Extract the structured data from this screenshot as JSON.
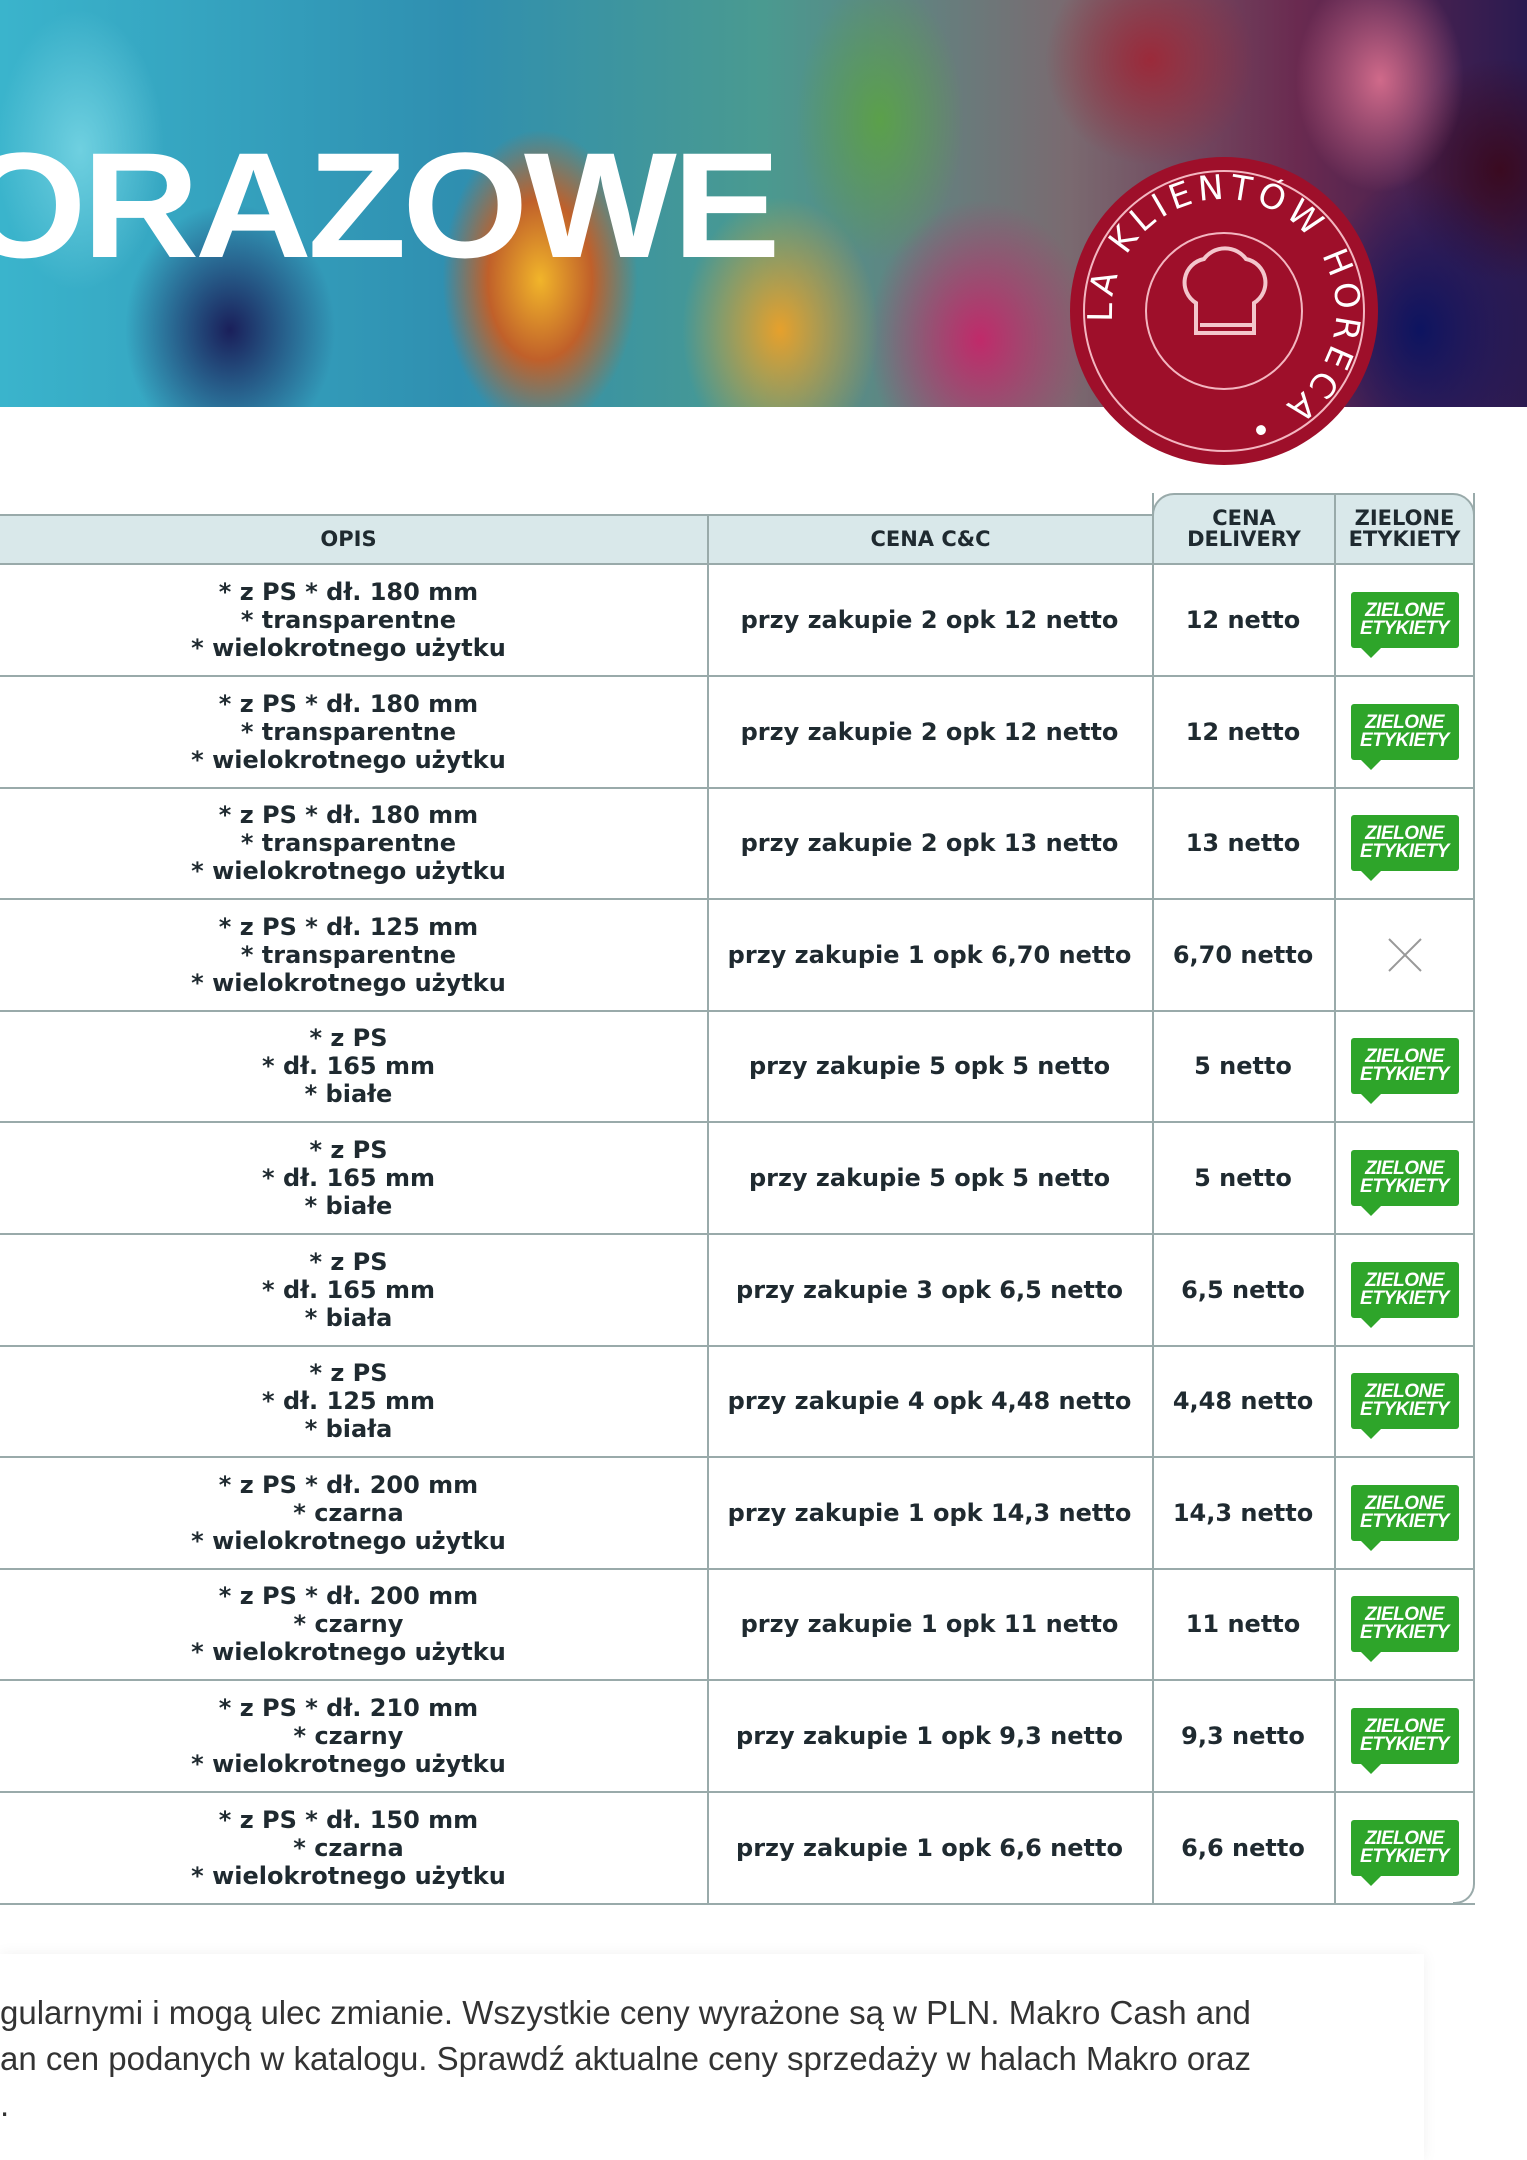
{
  "header": {
    "title": "ORAZOWE",
    "seal": {
      "text": "DLA KLIENTÓW HORECA",
      "icon": "chef-hat-icon",
      "color": "#9e0f2a"
    }
  },
  "table": {
    "columns": [
      "OPIS",
      "CENA C&C",
      "CENA DELIVERY",
      "ZIELONE ETYKIETY"
    ],
    "badge_label": [
      "ZIELONE",
      "ETYKIETY"
    ],
    "badge_color": "#2ea52a",
    "rows": [
      {
        "opis": "* z PS * dł. 180 mm\n* transparentne\n* wielokrotnego użytku",
        "cc": "przy zakupie 2 opk 12 netto",
        "delivery": "12 netto",
        "green": true
      },
      {
        "opis": "* z PS * dł. 180 mm\n* transparentne\n* wielokrotnego użytku",
        "cc": "przy zakupie 2 opk 12 netto",
        "delivery": "12 netto",
        "green": true
      },
      {
        "opis": "* z PS * dł. 180 mm\n* transparentne\n* wielokrotnego użytku",
        "cc": "przy zakupie 2 opk 13 netto",
        "delivery": "13 netto",
        "green": true
      },
      {
        "opis": "* z PS * dł. 125 mm\n* transparentne\n* wielokrotnego użytku",
        "cc": "przy zakupie 1 opk 6,70 netto",
        "delivery": "6,70 netto",
        "green": false
      },
      {
        "opis": "* z PS\n* dł. 165 mm\n* białe",
        "cc": "przy zakupie 5 opk 5 netto",
        "delivery": "5 netto",
        "green": true
      },
      {
        "opis": "* z PS\n* dł. 165 mm\n* białe",
        "cc": "przy zakupie 5 opk 5 netto",
        "delivery": "5 netto",
        "green": true
      },
      {
        "opis": "* z PS\n* dł. 165 mm\n* biała",
        "cc": "przy zakupie 3 opk 6,5 netto",
        "delivery": "6,5 netto",
        "green": true
      },
      {
        "opis": "* z PS\n* dł. 125 mm\n* biała",
        "cc": "przy zakupie 4 opk 4,48 netto",
        "delivery": "4,48 netto",
        "green": true
      },
      {
        "opis": "* z PS * dł. 200 mm\n* czarna\n* wielokrotnego użytku",
        "cc": "przy zakupie 1 opk 14,3 netto",
        "delivery": "14,3 netto",
        "green": true
      },
      {
        "opis": "* z PS * dł. 200 mm\n* czarny\n* wielokrotnego użytku",
        "cc": "przy zakupie 1 opk 11 netto",
        "delivery": "11 netto",
        "green": true
      },
      {
        "opis": "* z PS * dł. 210 mm\n* czarny\n* wielokrotnego użytku",
        "cc": "przy zakupie 1 opk 9,3 netto",
        "delivery": "9,3 netto",
        "green": true
      },
      {
        "opis": "* z PS * dł. 150 mm\n* czarna\n* wielokrotnego użytku",
        "cc": "przy zakupie 1 opk 6,6 netto",
        "delivery": "6,6 netto",
        "green": true
      }
    ]
  },
  "footer": {
    "lines": [
      "gularnymi i mogą ulec zmianie. Wszystkie ceny wyrażone są w PLN. Makro Cash and",
      "an cen podanych w katalogu. Sprawdź aktualne ceny sprzedaży w halach Makro oraz",
      "."
    ]
  }
}
